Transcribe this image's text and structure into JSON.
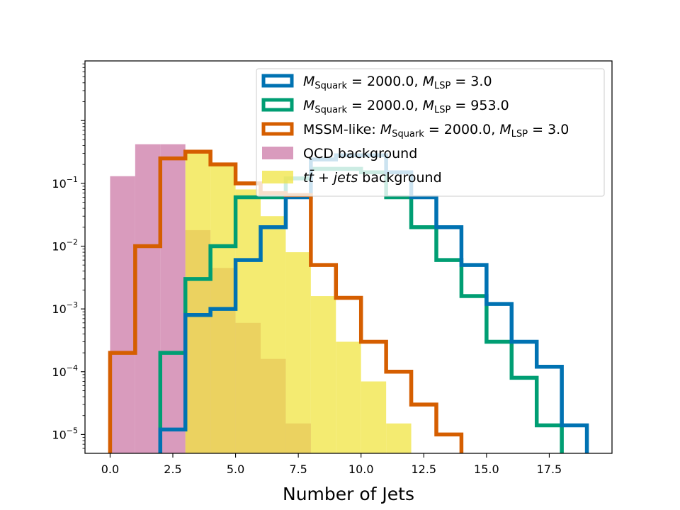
{
  "chart_data": {
    "type": "histogram",
    "title": "",
    "xlabel": "Number of Jets",
    "ylabel": "",
    "xlim": [
      -1.0,
      20.0
    ],
    "ylim_log10": [
      -5.3,
      0.95
    ],
    "yscale": "log",
    "x_ticks": [
      0.0,
      2.5,
      5.0,
      7.5,
      10.0,
      12.5,
      15.0,
      17.5
    ],
    "x_tick_labels": [
      "0.0",
      "2.5",
      "5.0",
      "7.5",
      "10.0",
      "12.5",
      "15.0",
      "17.5"
    ],
    "y_ticks_exponents": [
      -5,
      -4,
      -3,
      -2,
      -1
    ],
    "y_tick_labels": [
      {
        "base": "10",
        "exp": "−5"
      },
      {
        "base": "10",
        "exp": "−4"
      },
      {
        "base": "10",
        "exp": "−3"
      },
      {
        "base": "10",
        "exp": "−2"
      },
      {
        "base": "10",
        "exp": "−1"
      }
    ],
    "series": [
      {
        "name": "qcd",
        "legend_label": "QCD background",
        "style": "filled",
        "color": "#cc79a7",
        "bin_edges": [
          0,
          1,
          2,
          3,
          4,
          5,
          6,
          7,
          8
        ],
        "values": [
          0.13,
          0.42,
          0.42,
          0.018,
          0.0045,
          0.0006,
          0.00016,
          1.5e-05
        ]
      },
      {
        "name": "ttbar",
        "legend_label_parts": [
          "t",
          "t̄",
          " + ",
          "jets",
          " background"
        ],
        "style": "filled",
        "color": "#f0e442",
        "bin_edges": [
          3,
          4,
          5,
          6,
          7,
          8,
          9,
          10,
          11,
          12
        ],
        "values": [
          0.3,
          0.2,
          0.08,
          0.03,
          0.008,
          0.0016,
          0.0003,
          7e-05,
          1.5e-05
        ]
      },
      {
        "name": "mssm_like",
        "legend_label_parts": [
          "MSSM-like: ",
          "M",
          "Squark",
          " = 2000.0, ",
          "M",
          "LSP",
          " = 3.0"
        ],
        "style": "step",
        "color": "#d55e00",
        "bin_edges": [
          0,
          1,
          2,
          3,
          4,
          5,
          6,
          7,
          8,
          9,
          10,
          11,
          12,
          13,
          14
        ],
        "values": [
          0.0002,
          0.01,
          0.25,
          0.32,
          0.2,
          0.1,
          0.07,
          0.065,
          0.005,
          0.0015,
          0.0003,
          0.0001,
          3e-05,
          1e-05
        ]
      },
      {
        "name": "squark_lsp3",
        "legend_label_parts": [
          "M",
          "Squark",
          " = 2000.0, ",
          "M",
          "LSP",
          " = 3.0"
        ],
        "style": "step",
        "color": "#0072b2",
        "bin_edges": [
          2,
          3,
          4,
          5,
          6,
          7,
          8,
          9,
          10,
          11,
          12,
          13,
          14,
          15,
          16,
          17,
          18,
          19
        ],
        "values": [
          1.2e-05,
          0.0008,
          0.001,
          0.006,
          0.02,
          0.06,
          0.24,
          0.28,
          0.28,
          0.15,
          0.06,
          0.02,
          0.005,
          0.0012,
          0.0003,
          0.00012,
          1.4e-05
        ]
      },
      {
        "name": "squark_lsp953",
        "legend_label_parts": [
          "M",
          "Squark",
          " = 2000.0, ",
          "M",
          "LSP",
          " = 953.0"
        ],
        "style": "step",
        "color": "#009e73",
        "bin_edges": [
          2,
          3,
          4,
          5,
          6,
          7,
          8,
          9,
          10,
          11,
          12,
          13,
          14,
          15,
          16,
          17,
          18
        ],
        "values": [
          0.0002,
          0.003,
          0.01,
          0.06,
          0.06,
          0.12,
          0.17,
          0.17,
          0.15,
          0.06,
          0.02,
          0.006,
          0.0016,
          0.0003,
          8e-05,
          1.4e-05
        ]
      }
    ],
    "legend": {
      "position": "upper right",
      "order": [
        "squark_lsp3",
        "squark_lsp953",
        "mssm_like",
        "qcd",
        "ttbar"
      ]
    }
  }
}
